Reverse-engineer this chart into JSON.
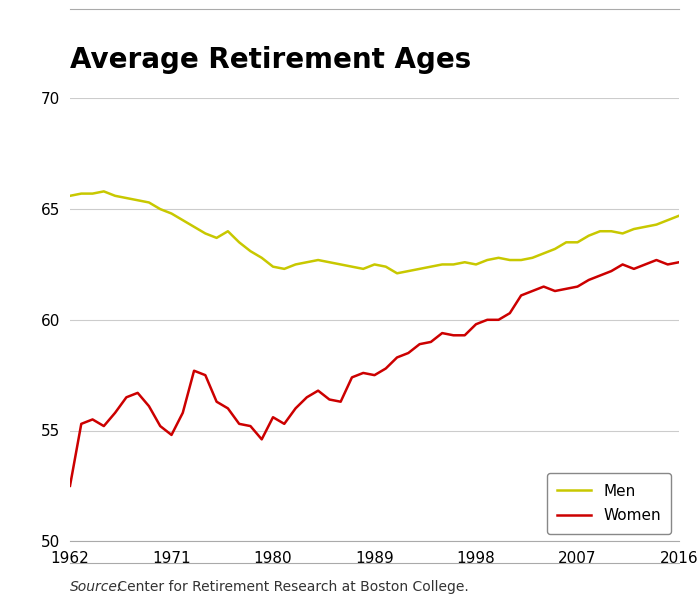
{
  "title": "Average Retirement Ages",
  "source_italic": "Source:",
  "source_normal": " Center for Retirement Research at Boston College.",
  "xlim": [
    1962,
    2016
  ],
  "ylim": [
    50,
    70
  ],
  "yticks": [
    50,
    55,
    60,
    65,
    70
  ],
  "xticks": [
    1962,
    1971,
    1980,
    1989,
    1998,
    2007,
    2016
  ],
  "men_data": {
    "years": [
      1962,
      1963,
      1964,
      1965,
      1966,
      1967,
      1968,
      1969,
      1970,
      1971,
      1972,
      1973,
      1974,
      1975,
      1976,
      1977,
      1978,
      1979,
      1980,
      1981,
      1982,
      1983,
      1984,
      1985,
      1986,
      1987,
      1988,
      1989,
      1990,
      1991,
      1992,
      1993,
      1994,
      1995,
      1996,
      1997,
      1998,
      1999,
      2000,
      2001,
      2002,
      2003,
      2004,
      2005,
      2006,
      2007,
      2008,
      2009,
      2010,
      2011,
      2012,
      2013,
      2014,
      2015,
      2016
    ],
    "values": [
      65.6,
      65.7,
      65.7,
      65.8,
      65.6,
      65.5,
      65.4,
      65.3,
      65.0,
      64.8,
      64.5,
      64.2,
      63.9,
      63.7,
      64.0,
      63.5,
      63.1,
      62.8,
      62.4,
      62.3,
      62.5,
      62.6,
      62.7,
      62.6,
      62.5,
      62.4,
      62.3,
      62.5,
      62.4,
      62.1,
      62.2,
      62.3,
      62.4,
      62.5,
      62.5,
      62.6,
      62.5,
      62.7,
      62.8,
      62.7,
      62.7,
      62.8,
      63.0,
      63.2,
      63.5,
      63.5,
      63.8,
      64.0,
      64.0,
      63.9,
      64.1,
      64.2,
      64.3,
      64.5,
      64.7
    ]
  },
  "women_data": {
    "years": [
      1962,
      1963,
      1964,
      1965,
      1966,
      1967,
      1968,
      1969,
      1970,
      1971,
      1972,
      1973,
      1974,
      1975,
      1976,
      1977,
      1978,
      1979,
      1980,
      1981,
      1982,
      1983,
      1984,
      1985,
      1986,
      1987,
      1988,
      1989,
      1990,
      1991,
      1992,
      1993,
      1994,
      1995,
      1996,
      1997,
      1998,
      1999,
      2000,
      2001,
      2002,
      2003,
      2004,
      2005,
      2006,
      2007,
      2008,
      2009,
      2010,
      2011,
      2012,
      2013,
      2014,
      2015,
      2016
    ],
    "values": [
      52.5,
      55.3,
      55.5,
      55.2,
      55.8,
      56.5,
      56.7,
      56.1,
      55.2,
      54.8,
      55.8,
      57.7,
      57.5,
      56.3,
      56.0,
      55.3,
      55.2,
      54.6,
      55.6,
      55.3,
      56.0,
      56.5,
      56.8,
      56.4,
      56.3,
      57.4,
      57.6,
      57.5,
      57.8,
      58.3,
      58.5,
      58.9,
      59.0,
      59.4,
      59.3,
      59.3,
      59.8,
      60.0,
      60.0,
      60.3,
      61.1,
      61.3,
      61.5,
      61.3,
      61.4,
      61.5,
      61.8,
      62.0,
      62.2,
      62.5,
      62.3,
      62.5,
      62.7,
      62.5,
      62.6
    ]
  },
  "men_color": "#c8c800",
  "women_color": "#cc0000",
  "line_width": 1.8,
  "title_fontsize": 20,
  "axis_fontsize": 11,
  "source_fontsize": 10,
  "legend_fontsize": 11,
  "background_color": "#ffffff",
  "grid_color": "#cccccc"
}
